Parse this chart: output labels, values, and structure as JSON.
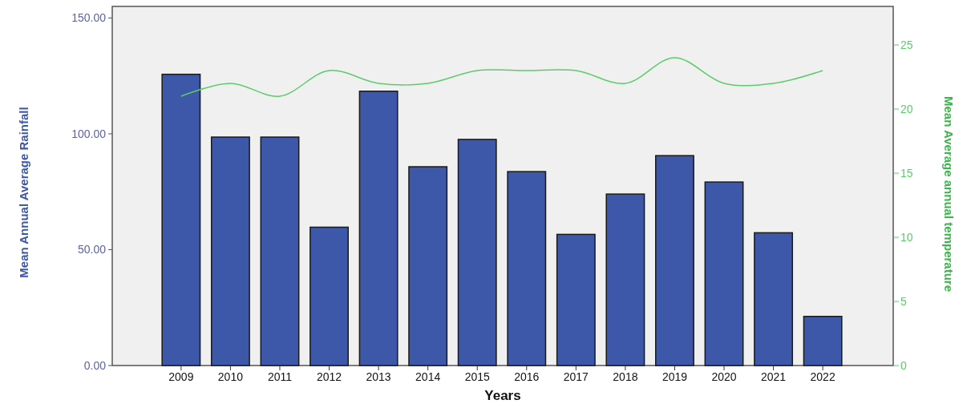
{
  "chart_data": {
    "type": "bar",
    "xlabel": "Years",
    "ylabel": "Mean Annual Average Rainfall",
    "y2label": "Mean Average annual temperature",
    "categories": [
      "2009",
      "2010",
      "2011",
      "2012",
      "2013",
      "2014",
      "2015",
      "2016",
      "2017",
      "2018",
      "2019",
      "2020",
      "2021",
      "2022"
    ],
    "series": [
      {
        "type": "bar",
        "color": "#3d57a9",
        "values": [
          125.7,
          98.6,
          98.6,
          59.7,
          118.4,
          85.8,
          97.6,
          83.7,
          56.6,
          74.0,
          90.6,
          79.2,
          57.3,
          21.2
        ]
      },
      {
        "type": "line",
        "axis": "y2",
        "color": "#5ccc6b",
        "values": [
          21,
          22,
          21,
          23,
          22,
          22,
          23,
          23,
          23,
          22,
          24,
          22,
          22,
          23
        ]
      }
    ],
    "ylim": [
      0,
      155
    ],
    "yticks": [
      {
        "value": 0,
        "label": "0.00"
      },
      {
        "value": 50,
        "label": "50.00"
      },
      {
        "value": 100,
        "label": "100.00"
      },
      {
        "value": 150,
        "label": "150.00"
      }
    ],
    "y2lim": [
      0,
      28
    ],
    "y2ticks": [
      0,
      5,
      10,
      15,
      20,
      25
    ],
    "grid": false,
    "marker": "none",
    "line_style": "solid"
  }
}
